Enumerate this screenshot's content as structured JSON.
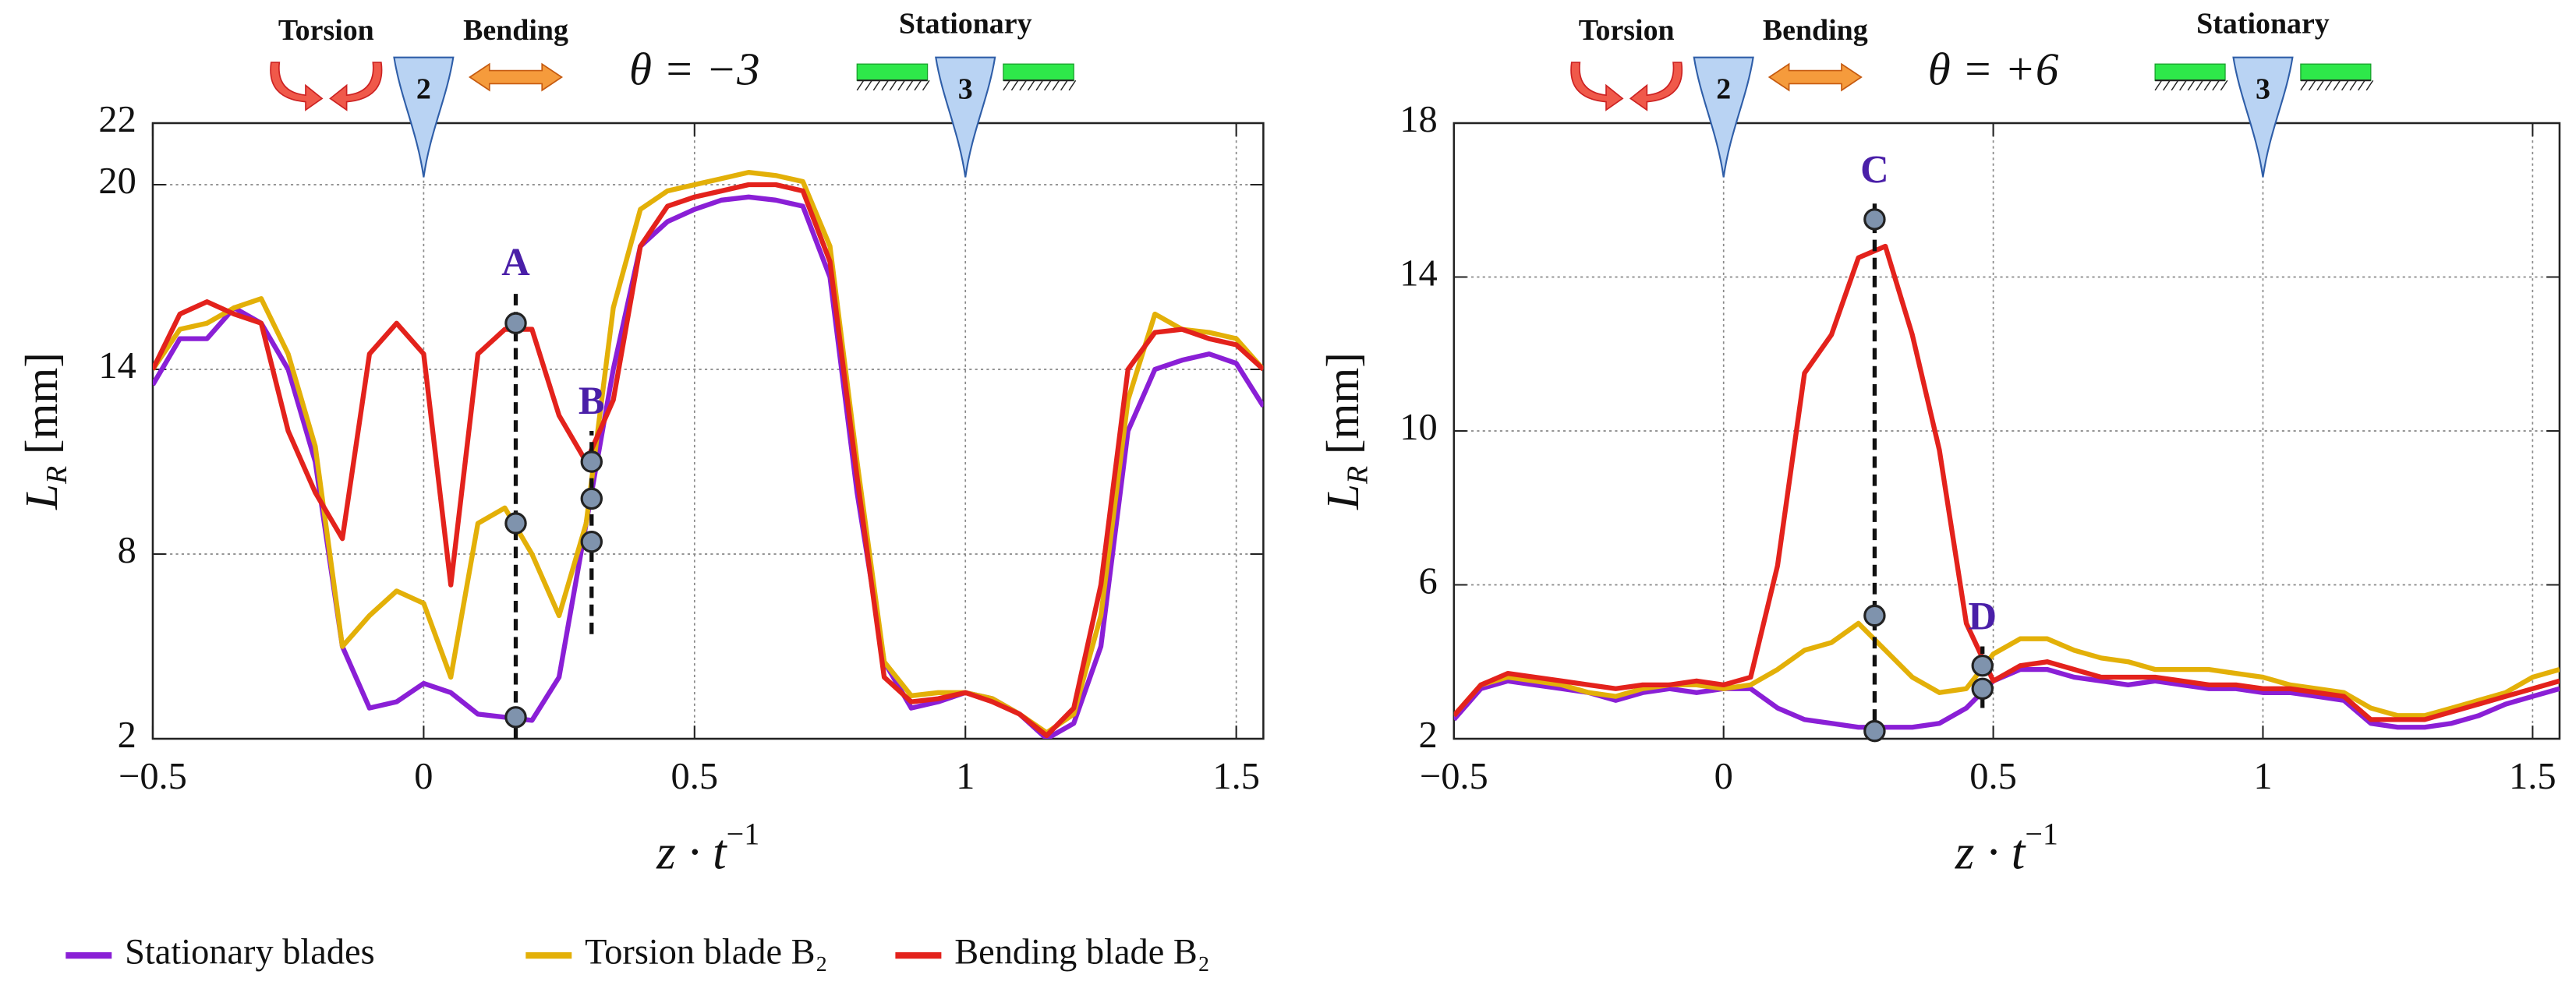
{
  "chart_data": [
    {
      "type": "line",
      "header": {
        "labels": [
          "Torsion",
          "Bending",
          "Stationary"
        ],
        "theta": "θ = −3"
      },
      "blades": [
        {
          "label": "2",
          "x": 0
        },
        {
          "label": "3",
          "x": 1
        }
      ],
      "ylabel": [
        "L",
        "R",
        " [mm]"
      ],
      "xlabel": [
        "z · t",
        "−1"
      ],
      "xlim": [
        -0.5,
        1.55
      ],
      "xticks": [
        {
          "value": -0.5,
          "label": "−0.5"
        },
        0,
        0.5,
        1,
        1.5
      ],
      "ylim": [
        2,
        22
      ],
      "yticks": [
        2,
        8,
        14,
        20,
        22
      ],
      "grid": true,
      "x": [
        -0.5,
        -0.45,
        -0.4,
        -0.35,
        -0.3,
        -0.25,
        -0.2,
        -0.15,
        -0.1,
        -0.05,
        0,
        0.05,
        0.1,
        0.15,
        0.2,
        0.25,
        0.3,
        0.35,
        0.4,
        0.45,
        0.5,
        0.55,
        0.6,
        0.65,
        0.7,
        0.75,
        0.8,
        0.85,
        0.9,
        0.95,
        1,
        1.05,
        1.1,
        1.15,
        1.2,
        1.25,
        1.3,
        1.35,
        1.4,
        1.45,
        1.5,
        1.55
      ],
      "series": [
        {
          "name": "Stationary blades",
          "color": "#8a1fd6",
          "values": [
            13.5,
            15,
            15,
            16,
            15.5,
            14,
            11,
            5,
            3,
            3.2,
            3.8,
            3.5,
            2.8,
            2.7,
            2.6,
            4,
            9,
            14,
            18,
            18.8,
            19.2,
            19.5,
            19.6,
            19.5,
            19.3,
            17,
            10,
            4.5,
            3,
            3.2,
            3.5,
            3.3,
            2.8,
            2,
            2.5,
            5,
            12,
            14,
            14.3,
            14.5,
            14.2,
            12.8
          ]
        },
        {
          "name": "Torsion blade B₂",
          "color": "#e3b008",
          "values": [
            14,
            15.3,
            15.5,
            16,
            16.3,
            14.5,
            11.5,
            5,
            6,
            6.8,
            6.4,
            4,
            9,
            9.5,
            8,
            6,
            9,
            16,
            19.2,
            19.8,
            20,
            20.2,
            20.4,
            20.3,
            20.1,
            18,
            11,
            4.5,
            3.4,
            3.5,
            3.5,
            3.3,
            2.8,
            2.2,
            2.8,
            6,
            13,
            15.8,
            15.3,
            15.2,
            15,
            14
          ]
        },
        {
          "name": "Bending blade B₂",
          "color": "#e3221c",
          "values": [
            14,
            15.8,
            16.2,
            15.8,
            15.5,
            12,
            10,
            8.5,
            14.5,
            15.5,
            14.5,
            7,
            14.5,
            15.3,
            15.3,
            12.5,
            11,
            13,
            18,
            19.3,
            19.6,
            19.8,
            20,
            20,
            19.8,
            17.5,
            10.5,
            4,
            3.2,
            3.3,
            3.5,
            3.2,
            2.8,
            2.1,
            3,
            7,
            14,
            15.2,
            15.3,
            15,
            14.8,
            14
          ]
        }
      ],
      "markers": [
        {
          "label": "A",
          "x": 0.17,
          "points": [
            15.5,
            9,
            2.7
          ],
          "line": [
            2,
            16.5
          ]
        },
        {
          "label": "B",
          "x": 0.31,
          "points": [
            11,
            9.8,
            8.4
          ],
          "line": [
            5.4,
            12
          ]
        }
      ]
    },
    {
      "type": "line",
      "header": {
        "labels": [
          "Torsion",
          "Bending",
          "Stationary"
        ],
        "theta": "θ = +6"
      },
      "blades": [
        {
          "label": "2",
          "x": 0
        },
        {
          "label": "3",
          "x": 1
        }
      ],
      "ylabel": [
        "L",
        "R",
        " [mm]"
      ],
      "xlabel": [
        "z · t",
        "−1"
      ],
      "xlim": [
        -0.5,
        1.55
      ],
      "xticks": [
        {
          "value": -0.5,
          "label": "−0.5"
        },
        0,
        0.5,
        1,
        1.5
      ],
      "ylim": [
        2,
        18
      ],
      "yticks": [
        2,
        6,
        10,
        14,
        18
      ],
      "grid": true,
      "x": [
        -0.5,
        -0.45,
        -0.4,
        -0.35,
        -0.3,
        -0.25,
        -0.2,
        -0.15,
        -0.1,
        -0.05,
        0,
        0.05,
        0.1,
        0.15,
        0.2,
        0.25,
        0.3,
        0.35,
        0.4,
        0.45,
        0.5,
        0.55,
        0.6,
        0.65,
        0.7,
        0.75,
        0.8,
        0.85,
        0.9,
        0.95,
        1,
        1.05,
        1.1,
        1.15,
        1.2,
        1.25,
        1.3,
        1.35,
        1.4,
        1.45,
        1.5,
        1.55
      ],
      "series": [
        {
          "color": "#8a1fd6",
          "values": [
            2.5,
            3.3,
            3.5,
            3.4,
            3.3,
            3.2,
            3,
            3.2,
            3.3,
            3.2,
            3.3,
            3.3,
            2.8,
            2.5,
            2.4,
            2.3,
            2.3,
            2.3,
            2.4,
            2.8,
            3.5,
            3.8,
            3.8,
            3.6,
            3.5,
            3.4,
            3.5,
            3.4,
            3.3,
            3.3,
            3.2,
            3.2,
            3.1,
            3,
            2.4,
            2.3,
            2.3,
            2.4,
            2.6,
            2.9,
            3.1,
            3.3
          ]
        },
        {
          "color": "#e3b008",
          "values": [
            2.6,
            3.4,
            3.6,
            3.5,
            3.4,
            3.2,
            3.1,
            3.3,
            3.4,
            3.4,
            3.3,
            3.4,
            3.8,
            4.3,
            4.5,
            5,
            4.3,
            3.6,
            3.2,
            3.3,
            4.2,
            4.6,
            4.6,
            4.3,
            4.1,
            4,
            3.8,
            3.8,
            3.8,
            3.7,
            3.6,
            3.4,
            3.3,
            3.2,
            2.8,
            2.6,
            2.6,
            2.8,
            3,
            3.2,
            3.6,
            3.8
          ]
        },
        {
          "color": "#e3221c",
          "values": [
            2.6,
            3.4,
            3.7,
            3.6,
            3.5,
            3.4,
            3.3,
            3.4,
            3.4,
            3.5,
            3.4,
            3.6,
            6.5,
            11.5,
            12.5,
            14.5,
            14.8,
            12.5,
            9.5,
            5,
            3.5,
            3.9,
            4,
            3.8,
            3.6,
            3.6,
            3.6,
            3.5,
            3.4,
            3.4,
            3.3,
            3.3,
            3.2,
            3.1,
            2.5,
            2.5,
            2.5,
            2.7,
            2.9,
            3.1,
            3.3,
            3.5
          ]
        }
      ],
      "markers": [
        {
          "label": "C",
          "x": 0.28,
          "points": [
            15.5,
            5.2,
            2.2
          ],
          "line": [
            2,
            16
          ]
        },
        {
          "label": "D",
          "x": 0.48,
          "points": [
            3.9,
            3.3
          ],
          "line": [
            2.8,
            4.4
          ]
        }
      ]
    }
  ]
}
